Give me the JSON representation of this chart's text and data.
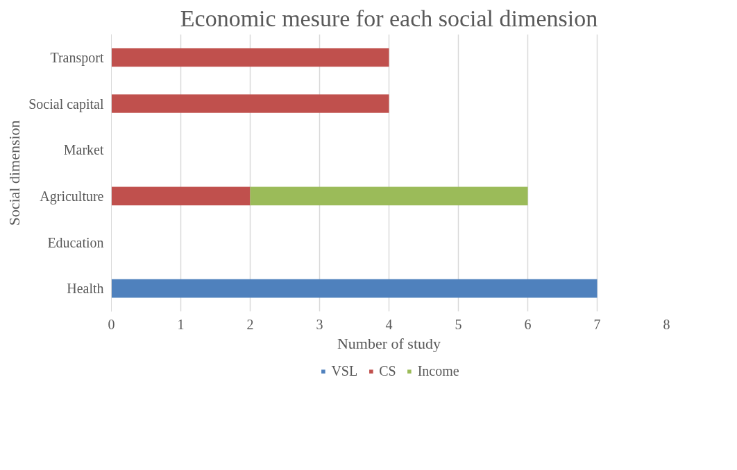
{
  "chart_data": {
    "type": "bar",
    "orientation": "horizontal",
    "stacked": true,
    "title": "Economic mesure for each social dimension",
    "xlabel": "Number of study",
    "ylabel": "Social dimension",
    "categories": [
      "Transport",
      "Social capital",
      "Market",
      "Agriculture",
      "Education",
      "Health"
    ],
    "series": [
      {
        "name": "VSL",
        "color": "#4f81bd",
        "values": [
          null,
          null,
          null,
          null,
          null,
          7
        ]
      },
      {
        "name": "CS",
        "color": "#c0504d",
        "values": [
          4,
          4,
          null,
          2,
          null,
          null
        ]
      },
      {
        "name": "Income",
        "color": "#9bbb59",
        "values": [
          null,
          null,
          null,
          4,
          null,
          null
        ]
      }
    ],
    "xlim": [
      0,
      8
    ],
    "xticks": [
      0,
      1,
      2,
      3,
      4,
      5,
      6,
      7,
      8
    ],
    "grid": "x",
    "legend": "bottom"
  }
}
